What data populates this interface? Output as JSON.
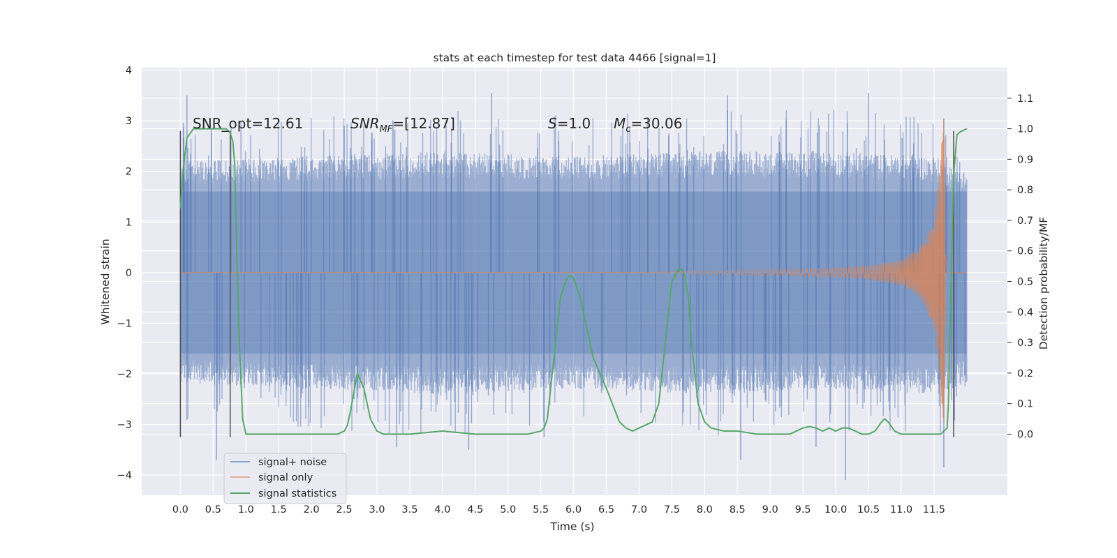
{
  "chart_data": {
    "type": "line",
    "title": "stats at each timestep for test data 4466 [signal=1]",
    "xlabel": "Time (s)",
    "ylabel": "Whitened strain",
    "y2label": "Detection probability/MF",
    "xlim": [
      -0.59,
      12.62
    ],
    "ylim": [
      -4.4,
      4.05
    ],
    "y2lim": [
      -0.2,
      1.2
    ],
    "xticks": [
      "0.0",
      "0.5",
      "1.0",
      "1.5",
      "2.0",
      "2.5",
      "3.0",
      "3.5",
      "4.0",
      "4.5",
      "5.0",
      "5.5",
      "6.0",
      "6.5",
      "7.0",
      "7.5",
      "8.0",
      "8.5",
      "9.0",
      "9.5",
      "10.0",
      "10.5",
      "11.0",
      "11.5"
    ],
    "yticks": [
      "4",
      "3",
      "2",
      "1",
      "0",
      "−1",
      "−2",
      "−3",
      "−4"
    ],
    "y2ticks": [
      "1.1",
      "1.0",
      "0.9",
      "0.8",
      "0.7",
      "0.6",
      "0.5",
      "0.4",
      "0.3",
      "0.2",
      "0.1",
      "0.0"
    ],
    "grid": true,
    "legend_position": "lower-left",
    "annotations": {
      "snr_opt": "SNR_opt=12.61",
      "snr_mf_main": "SNR",
      "snr_mf_sub": "MF",
      "snr_mf_value": "=[12.87]",
      "s_main": "S",
      "s_value": "=1.0",
      "mc_main": "M",
      "mc_sub": "c",
      "mc_value": "=30.06"
    },
    "series": [
      {
        "name": "signal+ noise",
        "color": "#4c72b0",
        "style": "noise band",
        "x_range": [
          0.0,
          12.0
        ],
        "envelope_upper": [
          [
            0.0,
            2.2
          ],
          [
            2.0,
            2.3
          ],
          [
            4.0,
            2.4
          ],
          [
            6.0,
            2.3
          ],
          [
            8.0,
            2.4
          ],
          [
            10.0,
            2.4
          ],
          [
            11.5,
            2.3
          ],
          [
            12.0,
            2.0
          ]
        ],
        "envelope_lower": [
          [
            0.0,
            -2.2
          ],
          [
            2.0,
            -2.3
          ],
          [
            4.0,
            -2.4
          ],
          [
            6.0,
            -2.3
          ],
          [
            8.0,
            -2.4
          ],
          [
            10.0,
            -2.3
          ],
          [
            11.5,
            -2.4
          ],
          [
            12.0,
            -2.2
          ]
        ],
        "spike_peaks": [
          [
            0.1,
            3.5
          ],
          [
            0.55,
            -3.7
          ],
          [
            2.5,
            2.9
          ],
          [
            3.3,
            -3.45
          ],
          [
            4.4,
            -3.5
          ],
          [
            4.75,
            3.55
          ],
          [
            5.55,
            -3.25
          ],
          [
            8.35,
            3.5
          ],
          [
            8.55,
            -3.7
          ],
          [
            9.7,
            -3.45
          ],
          [
            10.15,
            -4.1
          ],
          [
            10.5,
            3.55
          ],
          [
            11.65,
            -3.85
          ],
          [
            11.65,
            3.05
          ]
        ]
      },
      {
        "name": "signal only",
        "color": "#dd8452",
        "style": "chirp",
        "x_range": [
          0.0,
          12.0
        ],
        "amplitude_envelope": [
          [
            0.0,
            0.0
          ],
          [
            7.0,
            0.0
          ],
          [
            8.0,
            0.04
          ],
          [
            9.0,
            0.06
          ],
          [
            10.0,
            0.09
          ],
          [
            10.5,
            0.13
          ],
          [
            11.0,
            0.25
          ],
          [
            11.3,
            0.5
          ],
          [
            11.5,
            1.1
          ],
          [
            11.6,
            2.3
          ],
          [
            11.65,
            3.1
          ],
          [
            11.7,
            0.0
          ],
          [
            12.0,
            0.0
          ]
        ]
      },
      {
        "name": "signal statistics",
        "color": "#55a868",
        "axis": "right",
        "x": [
          0.0,
          0.05,
          0.1,
          0.2,
          0.3,
          0.45,
          0.6,
          0.7,
          0.75,
          0.8,
          0.83,
          0.86,
          0.9,
          0.95,
          1.0,
          1.1,
          1.3,
          1.6,
          2.0,
          2.4,
          2.5,
          2.55,
          2.6,
          2.7,
          2.8,
          2.9,
          3.0,
          3.1,
          3.2,
          3.5,
          4.0,
          4.5,
          5.0,
          5.3,
          5.5,
          5.55,
          5.6,
          5.7,
          5.8,
          5.9,
          5.95,
          6.0,
          6.1,
          6.3,
          6.5,
          6.7,
          6.8,
          6.9,
          7.0,
          7.2,
          7.3,
          7.4,
          7.5,
          7.6,
          7.65,
          7.7,
          7.75,
          7.8,
          7.9,
          8.0,
          8.1,
          8.3,
          8.5,
          8.8,
          9.0,
          9.3,
          9.5,
          9.6,
          9.7,
          9.8,
          9.9,
          10.0,
          10.1,
          10.2,
          10.3,
          10.4,
          10.5,
          10.6,
          10.7,
          10.75,
          10.8,
          10.9,
          11.0,
          11.2,
          11.4,
          11.5,
          11.6,
          11.65,
          11.7,
          11.72,
          11.75,
          11.8,
          11.85,
          11.9,
          12.0
        ],
        "values": [
          0.74,
          0.88,
          0.97,
          1.0,
          1.0,
          1.0,
          1.0,
          1.0,
          0.99,
          0.96,
          0.88,
          0.6,
          0.3,
          0.05,
          0.0,
          0.0,
          0.0,
          0.0,
          0.0,
          0.0,
          0.01,
          0.03,
          0.08,
          0.2,
          0.15,
          0.05,
          0.01,
          0.0,
          0.0,
          0.0,
          0.01,
          0.0,
          0.0,
          0.0,
          0.01,
          0.02,
          0.05,
          0.25,
          0.45,
          0.51,
          0.52,
          0.51,
          0.45,
          0.25,
          0.15,
          0.04,
          0.02,
          0.01,
          0.02,
          0.04,
          0.1,
          0.3,
          0.5,
          0.54,
          0.54,
          0.52,
          0.45,
          0.3,
          0.1,
          0.04,
          0.02,
          0.01,
          0.01,
          0.0,
          0.0,
          0.0,
          0.02,
          0.025,
          0.02,
          0.01,
          0.02,
          0.01,
          0.02,
          0.02,
          0.01,
          0.0,
          0.0,
          0.01,
          0.04,
          0.05,
          0.04,
          0.01,
          0.0,
          0.0,
          0.0,
          0.0,
          0.0,
          0.01,
          0.02,
          0.1,
          0.4,
          0.85,
          0.98,
          0.99,
          1.0
        ]
      }
    ],
    "markers": {
      "color": "#4d4d4d",
      "x": [
        0.0,
        0.76,
        11.8
      ],
      "y_range": [
        -3.25,
        2.8
      ]
    }
  }
}
